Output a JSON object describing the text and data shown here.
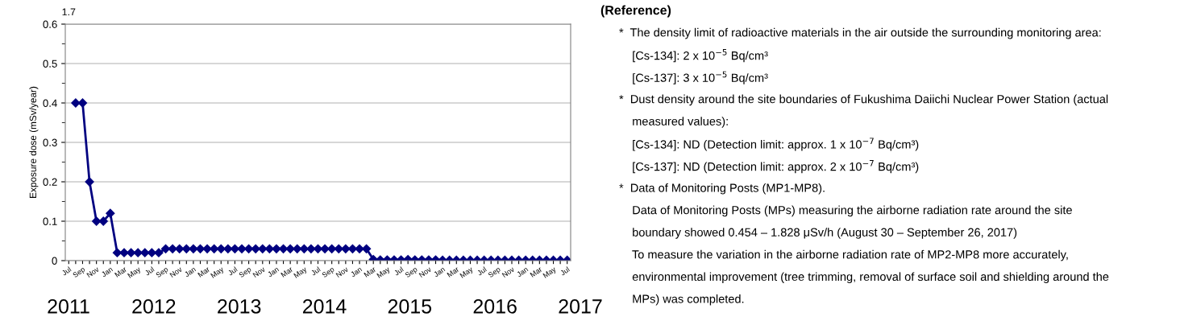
{
  "chart_data": {
    "type": "line",
    "ylabel": "Exposure dose (mSv/year)",
    "categories": [
      "Jul",
      null,
      "Sep",
      null,
      "Nov",
      null,
      "Jan",
      null,
      "Mar",
      null,
      "May",
      null,
      "Jul",
      null,
      "Sep",
      null,
      "Nov",
      null,
      "Jan",
      null,
      "Mar",
      null,
      "May",
      null,
      "Jul",
      null,
      "Sep",
      null,
      "Nov",
      null,
      "Jan",
      null,
      "Mar",
      null,
      "May",
      null,
      "Jul",
      null,
      "Sep",
      null,
      "Nov",
      null,
      "Jan",
      null,
      "Mar",
      null,
      "May",
      null,
      "Jul",
      null,
      "Sep",
      null,
      "Nov",
      null,
      "Jan",
      null,
      "Mar",
      null,
      "May",
      null,
      "Jul",
      null,
      "Sep",
      null,
      "Nov",
      null,
      "Jan",
      null,
      "Mar",
      null,
      "May",
      null,
      "Jul"
    ],
    "series": [
      {
        "color": "#000080",
        "values": [
          null,
          0.4,
          0.4,
          0.2,
          0.1,
          0.1,
          0.12,
          0.02,
          0.02,
          0.02,
          0.02,
          0.02,
          0.02,
          0.02,
          0.03,
          0.03,
          0.03,
          0.03,
          0.03,
          0.03,
          0.03,
          0.03,
          0.03,
          0.03,
          0.03,
          0.03,
          0.03,
          0.03,
          0.03,
          0.03,
          0.03,
          0.03,
          0.03,
          0.03,
          0.03,
          0.03,
          0.03,
          0.03,
          0.03,
          0.03,
          0.03,
          0.03,
          0.03,
          0.03,
          0.003,
          0.002,
          0.002,
          0.002,
          0.002,
          0.003,
          0.002,
          0.002,
          0.002,
          0.002,
          0.001,
          0.001,
          0.001,
          0.001,
          0.001,
          0.001,
          0.001,
          0.001,
          0.001,
          0.001,
          0.001,
          0.001,
          0.001,
          0.001,
          0.001,
          0.001,
          0.001,
          0.001,
          0.001
        ]
      }
    ],
    "ylim": [
      0,
      0.6
    ],
    "yticks": [
      0,
      0.1,
      0.2,
      0.3,
      0.4,
      0.5,
      0.6
    ],
    "grid": "y",
    "marker": "diamond",
    "line_style": "solid",
    "legend": false,
    "annotations": [
      "2011",
      "2012",
      "2013",
      "2014",
      "2015",
      "2016",
      "2017",
      "1.7",
      "(Reference)",
      "*  The density limit of radioactive materials in the air outside the surrounding monitoring area:",
      "    [Cs-134]: 2 x 10$^{−5}$ Bq/cm³",
      "    [Cs-137]: 3 x 10$^{−5}$ Bq/cm³",
      "*  Dust density around the site boundaries of Fukushima Daiichi Nuclear Power Station (actual",
      "    measured values):",
      "    [Cs-134]: ND (Detection limit: approx. 1 x 10$^{−7}$ Bq/cm³)",
      "    [Cs-137]: ND (Detection limit: approx. 2 x 10$^{−7}$ Bq/cm³)",
      "*  Data of Monitoring Posts (MP1-MP8).",
      "    Data of Monitoring Posts (MPs) measuring the airborne radiation rate around the site",
      "    boundary showed 0.454 – 1.828 μSv/h (August 30 – September 26, 2017)",
      "    To measure the variation in the airborne radiation rate of MP2-MP8 more accurately,",
      "    environmental improvement (tree trimming, removal of surface soil and shielding around the",
      "    MPs) was completed."
    ]
  }
}
